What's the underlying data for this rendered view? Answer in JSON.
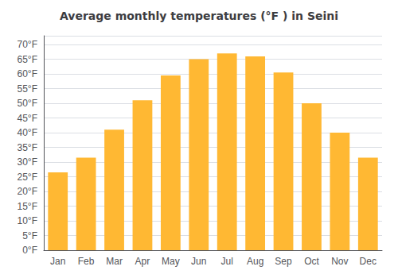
{
  "chart_data": {
    "type": "bar",
    "title": "Average monthly temperatures (°F ) in Seini",
    "categories": [
      "Jan",
      "Feb",
      "Mar",
      "Apr",
      "May",
      "Jun",
      "Jul",
      "Aug",
      "Sep",
      "Oct",
      "Nov",
      "Dec"
    ],
    "values": [
      26.5,
      31.5,
      41.0,
      51.0,
      59.5,
      65.0,
      67.0,
      66.0,
      60.5,
      50.0,
      40.0,
      31.5
    ],
    "color": "#FFB833",
    "ylim": [
      0,
      73
    ],
    "yticks": [
      {
        "value": 0,
        "label": "0°F"
      },
      {
        "value": 5,
        "label": "5°F"
      },
      {
        "value": 10,
        "label": "10°F"
      },
      {
        "value": 15,
        "label": "15°F"
      },
      {
        "value": 20,
        "label": "20°F"
      },
      {
        "value": 25,
        "label": "25°F"
      },
      {
        "value": 30,
        "label": "30°F"
      },
      {
        "value": 35,
        "label": "35°F"
      },
      {
        "value": 40,
        "label": "40°F"
      },
      {
        "value": 45,
        "label": "45°F"
      },
      {
        "value": 50,
        "label": "50°F"
      },
      {
        "value": 55,
        "label": "55°F"
      },
      {
        "value": 60,
        "label": "60°F"
      },
      {
        "value": 65,
        "label": "65°F"
      },
      {
        "value": 70,
        "label": "70°F"
      }
    ],
    "grid": true
  }
}
